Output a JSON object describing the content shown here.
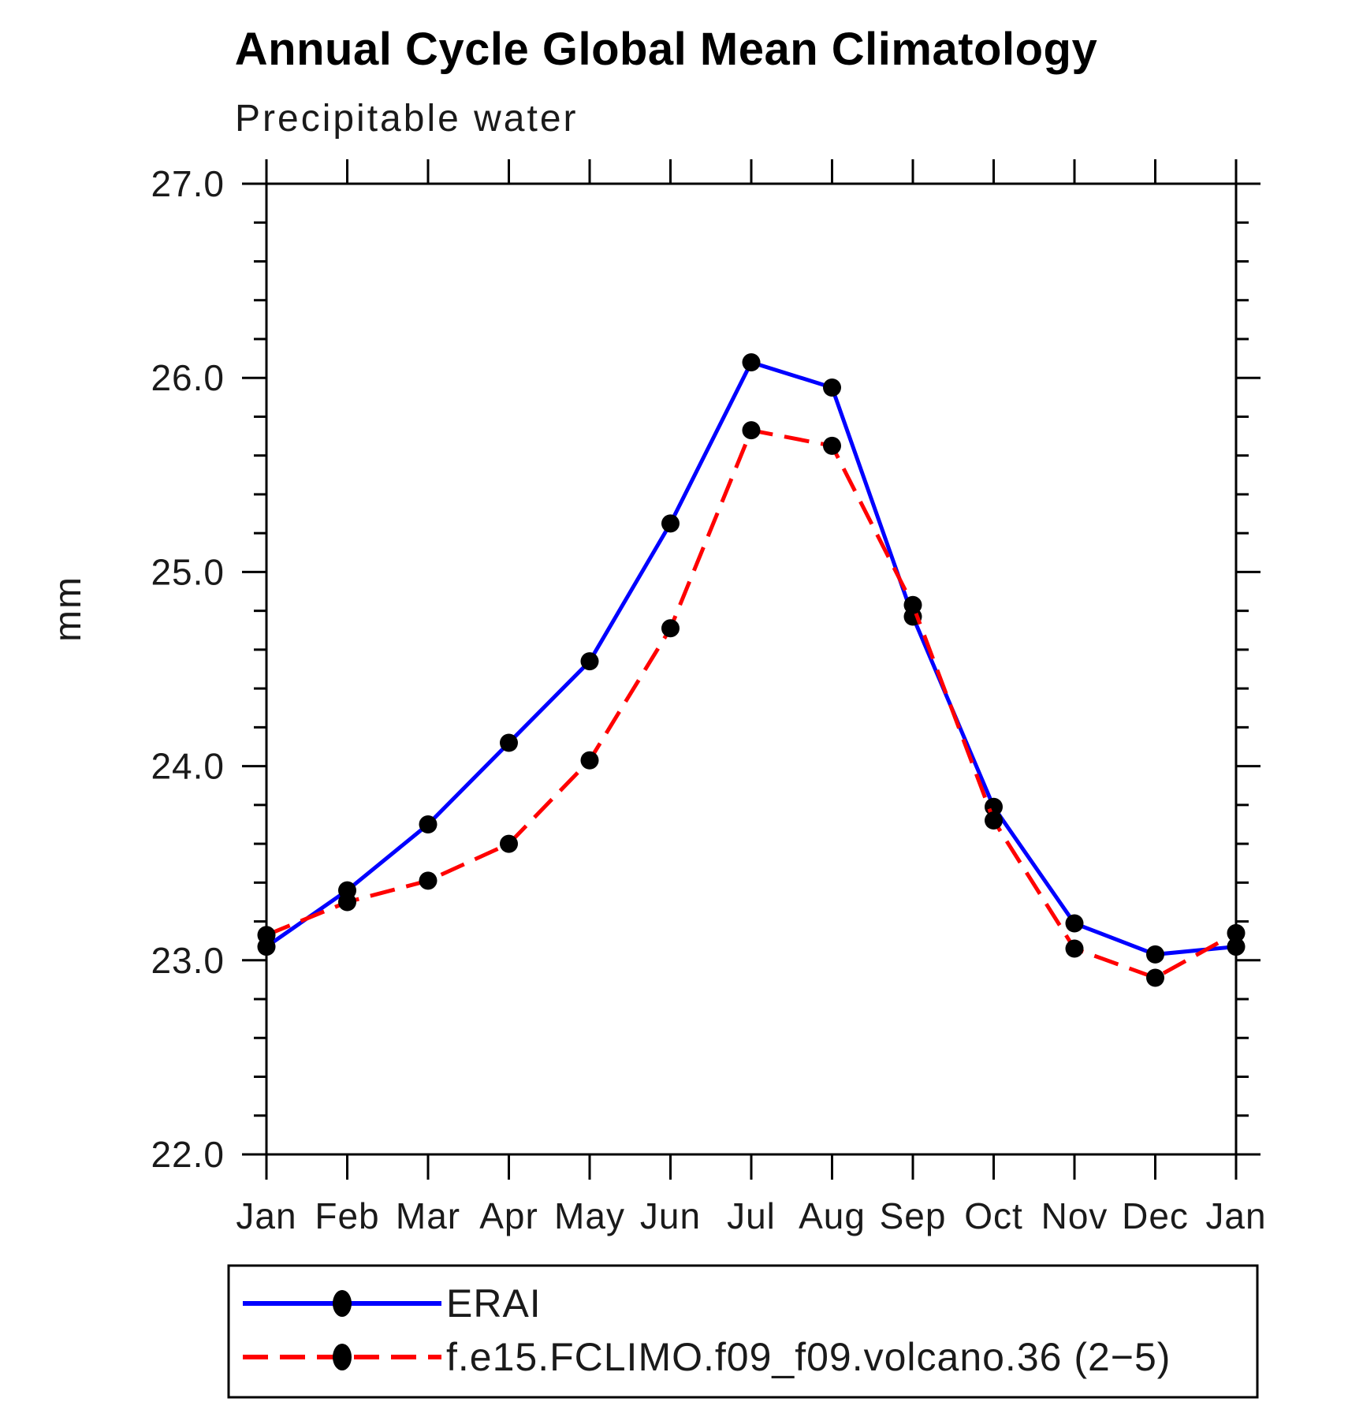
{
  "chart_data": {
    "type": "line",
    "title": "Annual Cycle Global Mean Climatology",
    "subtitle": "Precipitable water",
    "ylabel": "mm",
    "xlabel": "",
    "x_tick_labels": [
      "Jan",
      "Feb",
      "Mar",
      "Apr",
      "May",
      "Jun",
      "Jul",
      "Aug",
      "Sep",
      "Oct",
      "Nov",
      "Dec",
      "Jan"
    ],
    "ylim": [
      22.0,
      27.0
    ],
    "y_tick_labels": [
      "22.0",
      "23.0",
      "24.0",
      "25.0",
      "26.0",
      "27.0"
    ],
    "y_major_step": 1.0,
    "y_minor_step": 0.2,
    "grid": false,
    "legend_position": "bottom-left",
    "colors": {
      "axis": "#000000",
      "erai": "#0000ff",
      "model": "#ff0000",
      "marker": "#000000"
    },
    "series": [
      {
        "name": "ERAI",
        "color": "#0000ff",
        "line_style": "solid",
        "marker": "filled-circle",
        "values": [
          23.07,
          23.36,
          23.7,
          24.12,
          24.54,
          25.25,
          26.08,
          25.95,
          24.77,
          23.79,
          23.19,
          23.03,
          23.07
        ]
      },
      {
        "name": "f.e15.FCLIMO.f09_f09.volcano.36 (2−5)",
        "color": "#ff0000",
        "line_style": "dashed",
        "marker": "filled-circle",
        "values": [
          23.13,
          23.3,
          23.41,
          23.6,
          24.03,
          24.71,
          25.73,
          25.65,
          24.83,
          23.72,
          23.06,
          22.91,
          23.14
        ]
      }
    ]
  }
}
